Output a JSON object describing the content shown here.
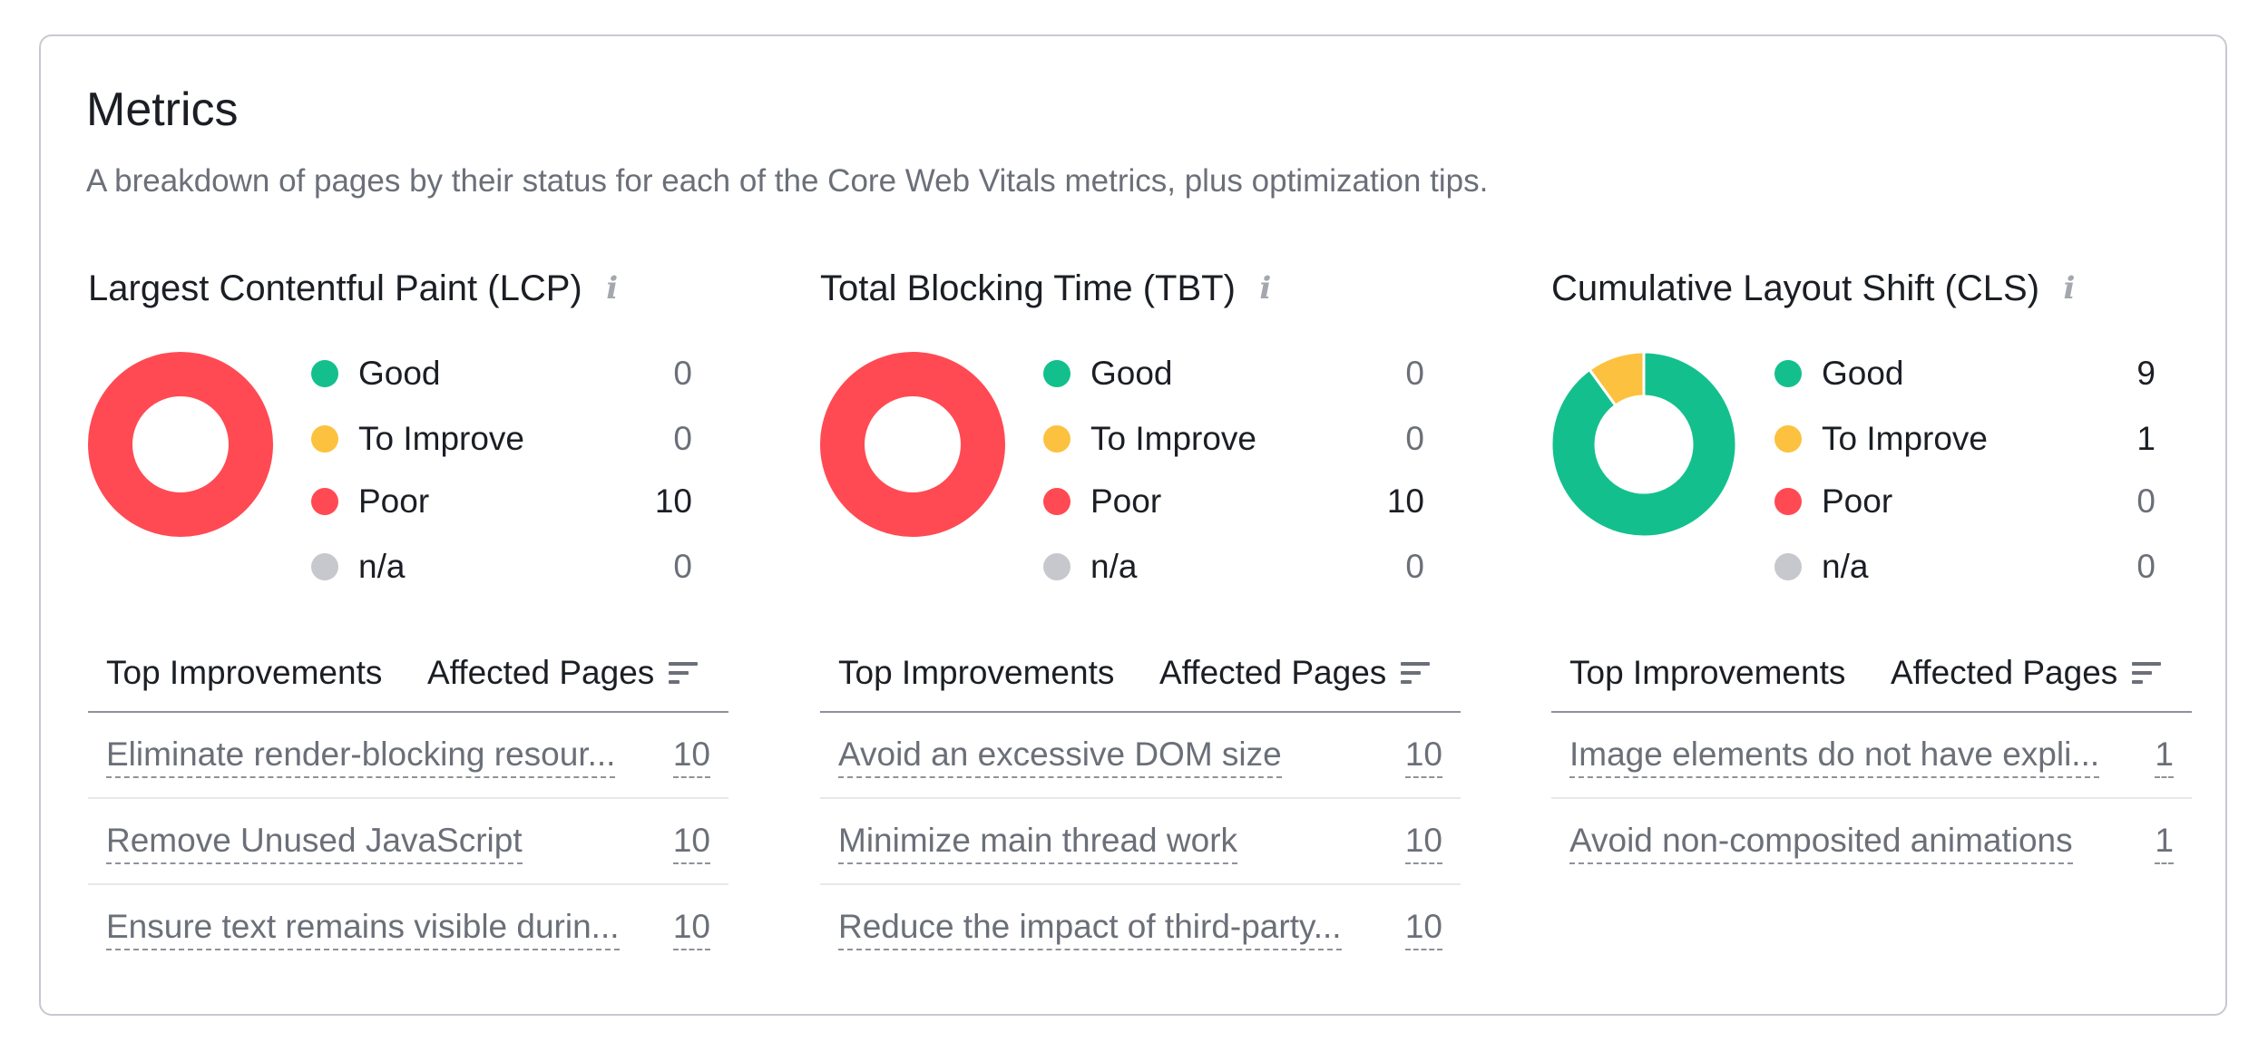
{
  "card": {
    "title": "Metrics",
    "subtitle": "A breakdown of pages by their status for each of the Core Web Vitals metrics, plus optimization tips."
  },
  "colors": {
    "good": "#13c08d",
    "to_improve": "#fcc13f",
    "poor": "#ff4a53",
    "na": "#c6c8cd"
  },
  "metrics": [
    {
      "title": "Largest Contentful Paint (LCP)",
      "legend": [
        {
          "label": "Good",
          "value": "0"
        },
        {
          "label": "To Improve",
          "value": "0"
        },
        {
          "label": "Poor",
          "value": "10"
        },
        {
          "label": "n/a",
          "value": "0"
        }
      ],
      "distribution": {
        "good": 0,
        "to_improve": 0,
        "poor": 10,
        "na": 0
      },
      "table": {
        "col_improvements": "Top Improvements",
        "col_affected": "Affected Pages",
        "rows": [
          {
            "text": "Eliminate render-blocking resour...",
            "count": "10"
          },
          {
            "text": "Remove Unused JavaScript",
            "count": "10"
          },
          {
            "text": "Ensure text remains visible durin...",
            "count": "10"
          }
        ]
      }
    },
    {
      "title": "Total Blocking Time (TBT)",
      "legend": [
        {
          "label": "Good",
          "value": "0"
        },
        {
          "label": "To Improve",
          "value": "0"
        },
        {
          "label": "Poor",
          "value": "10"
        },
        {
          "label": "n/a",
          "value": "0"
        }
      ],
      "distribution": {
        "good": 0,
        "to_improve": 0,
        "poor": 10,
        "na": 0
      },
      "table": {
        "col_improvements": "Top Improvements",
        "col_affected": "Affected Pages",
        "rows": [
          {
            "text": "Avoid an excessive DOM size",
            "count": "10"
          },
          {
            "text": "Minimize main thread work",
            "count": "10"
          },
          {
            "text": "Reduce the impact of third-party...",
            "count": "10"
          }
        ]
      }
    },
    {
      "title": "Cumulative Layout Shift (CLS)",
      "legend": [
        {
          "label": "Good",
          "value": "9"
        },
        {
          "label": "To Improve",
          "value": "1"
        },
        {
          "label": "Poor",
          "value": "0"
        },
        {
          "label": "n/a",
          "value": "0"
        }
      ],
      "distribution": {
        "good": 9,
        "to_improve": 1,
        "poor": 0,
        "na": 0
      },
      "table": {
        "col_improvements": "Top Improvements",
        "col_affected": "Affected Pages",
        "rows": [
          {
            "text": "Image elements do not have expli...",
            "count": "1"
          },
          {
            "text": "Avoid non-composited animations",
            "count": "1"
          }
        ]
      }
    }
  ]
}
